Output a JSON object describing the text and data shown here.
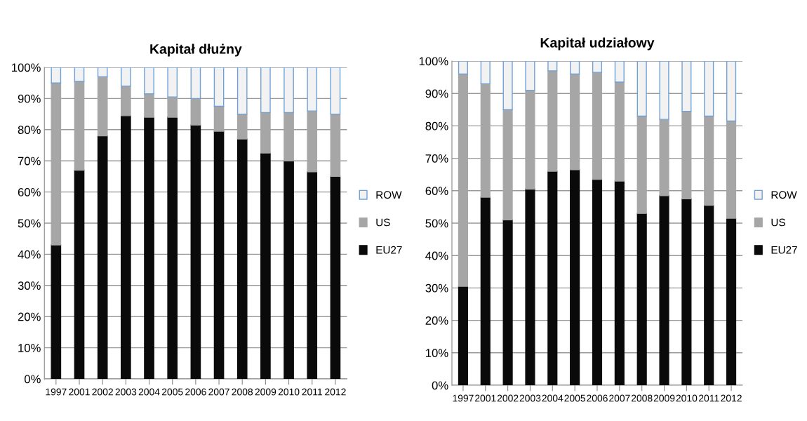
{
  "chart_data": [
    {
      "type": "bar",
      "title": "Kapitał dłużny",
      "stacked": true,
      "legend": "right",
      "grid": "y",
      "categories": [
        "1997",
        "2001",
        "2002",
        "2003",
        "2004",
        "2005",
        "2006",
        "2007",
        "2008",
        "2009",
        "2010",
        "2011",
        "2012"
      ],
      "ylim": [
        0,
        100
      ],
      "yticks": [
        {
          "value": 0,
          "label": "0%"
        },
        {
          "value": 10,
          "label": "10%"
        },
        {
          "value": 20,
          "label": "20%"
        },
        {
          "value": 30,
          "label": "30%"
        },
        {
          "value": 40,
          "label": "40%"
        },
        {
          "value": 50,
          "label": "50%"
        },
        {
          "value": 60,
          "label": "60%"
        },
        {
          "value": 70,
          "label": "70%"
        },
        {
          "value": 80,
          "label": "80%"
        },
        {
          "value": 90,
          "label": "90%"
        },
        {
          "value": 100,
          "label": "100%"
        }
      ],
      "series": [
        {
          "name": "EU27",
          "color": "#0a0a0a",
          "values": [
            43,
            67,
            78,
            84.5,
            84,
            84,
            81.5,
            79.5,
            77,
            72.5,
            70,
            66.5,
            65
          ]
        },
        {
          "name": "US",
          "color": "#a6a6a6",
          "values": [
            52,
            28.5,
            19,
            9.5,
            7.5,
            6.5,
            8.5,
            8,
            8,
            13,
            15.5,
            19.5,
            20
          ]
        },
        {
          "name": "ROW",
          "color": "#f2f2f2",
          "values": [
            5,
            4.5,
            3,
            6,
            8.5,
            9.5,
            10,
            12.5,
            15,
            14.5,
            14.5,
            14,
            15
          ]
        }
      ]
    },
    {
      "type": "bar",
      "title": "Kapitał udziałowy",
      "stacked": true,
      "legend": "right",
      "grid": "y",
      "categories": [
        "1997",
        "2001",
        "2002",
        "2003",
        "2004",
        "2005",
        "2006",
        "2007",
        "2008",
        "2009",
        "2010",
        "2011",
        "2012"
      ],
      "ylim": [
        0,
        100
      ],
      "yticks": [
        {
          "value": 0,
          "label": "0%"
        },
        {
          "value": 10,
          "label": "10%"
        },
        {
          "value": 20,
          "label": "20%"
        },
        {
          "value": 30,
          "label": "30%"
        },
        {
          "value": 40,
          "label": "40%"
        },
        {
          "value": 50,
          "label": "50%"
        },
        {
          "value": 60,
          "label": "60%"
        },
        {
          "value": 70,
          "label": "70%"
        },
        {
          "value": 80,
          "label": "80%"
        },
        {
          "value": 90,
          "label": "90%"
        },
        {
          "value": 100,
          "label": "100%"
        }
      ],
      "series": [
        {
          "name": "EU27",
          "color": "#0a0a0a",
          "values": [
            30.5,
            58,
            51,
            60.5,
            66,
            66.5,
            63.5,
            63,
            53,
            58.5,
            57.5,
            55.5,
            51.5
          ]
        },
        {
          "name": "US",
          "color": "#a6a6a6",
          "values": [
            65.5,
            35,
            34,
            30.5,
            31,
            29.5,
            33,
            30.5,
            30,
            23.5,
            27,
            27.5,
            30
          ]
        },
        {
          "name": "ROW",
          "color": "#f2f2f2",
          "values": [
            4,
            7,
            15,
            9,
            3,
            4,
            3.5,
            6.5,
            17,
            18,
            15.5,
            17,
            18.5
          ]
        }
      ]
    }
  ]
}
